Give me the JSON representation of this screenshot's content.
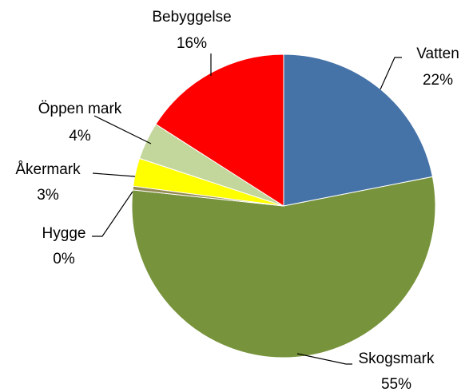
{
  "chart_data": {
    "type": "pie",
    "categories": [
      "Vatten",
      "Skogsmark",
      "Hygge",
      "Åkermark",
      "Öppen mark",
      "Bebyggelse"
    ],
    "values": [
      22,
      55,
      0.4,
      3,
      4,
      16
    ],
    "value_labels": [
      "22%",
      "55%",
      "0%",
      "3%",
      "4%",
      "16%"
    ],
    "colors": [
      "#4572a7",
      "#77933c",
      "#948a54",
      "#ffff00",
      "#c3d69b",
      "#ff0000"
    ]
  }
}
